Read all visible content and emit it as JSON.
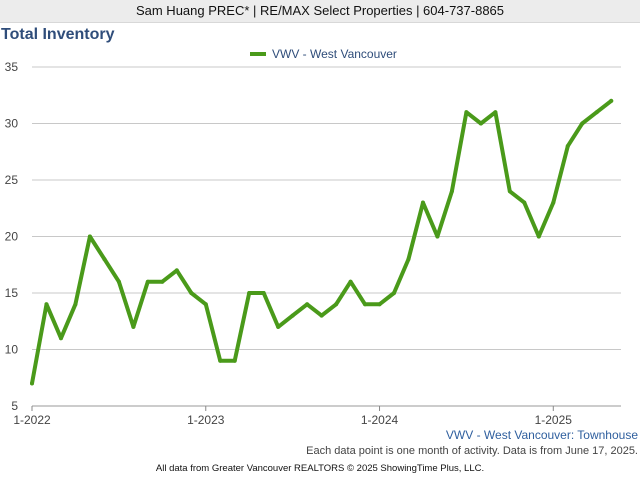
{
  "header": {
    "banner": "Sam Huang PREC* | RE/MAX Select Properties | 604-737-8865"
  },
  "chart_data": {
    "type": "line",
    "title": "Total Inventory",
    "subtitle": "VWV - West Vancouver: Townhouse",
    "x_tick_labels": [
      "1-2022",
      "1-2023",
      "1-2024",
      "1-2025"
    ],
    "ylim": [
      5,
      35
    ],
    "yticks": [
      5,
      10,
      15,
      20,
      25,
      30,
      35
    ],
    "grid": true,
    "legend_position": "top-center",
    "series": [
      {
        "name": "VWV - West Vancouver",
        "color": "#4a9a1a",
        "x": [
          "2022-01",
          "2022-02",
          "2022-03",
          "2022-04",
          "2022-05",
          "2022-06",
          "2022-07",
          "2022-08",
          "2022-09",
          "2022-10",
          "2022-11",
          "2022-12",
          "2023-01",
          "2023-02",
          "2023-03",
          "2023-04",
          "2023-05",
          "2023-06",
          "2023-07",
          "2023-08",
          "2023-09",
          "2023-10",
          "2023-11",
          "2023-12",
          "2024-01",
          "2024-02",
          "2024-03",
          "2024-04",
          "2024-05",
          "2024-06",
          "2024-07",
          "2024-08",
          "2024-09",
          "2024-10",
          "2024-11",
          "2024-12",
          "2025-01",
          "2025-02",
          "2025-03",
          "2025-04",
          "2025-05"
        ],
        "values": [
          7,
          14,
          11,
          14,
          20,
          18,
          16,
          12,
          16,
          16,
          17,
          15,
          14,
          9,
          9,
          15,
          15,
          12,
          13,
          14,
          13,
          14,
          16,
          14,
          14,
          15,
          18,
          23,
          20,
          24,
          31,
          30,
          31,
          24,
          23,
          20,
          23,
          28,
          30,
          31,
          32
        ]
      }
    ]
  },
  "notes": {
    "data_note": "Each data point is one month of activity. Data is from June 17, 2025.",
    "source": "All data from Greater Vancouver REALTORS © 2025 ShowingTime Plus, LLC."
  }
}
